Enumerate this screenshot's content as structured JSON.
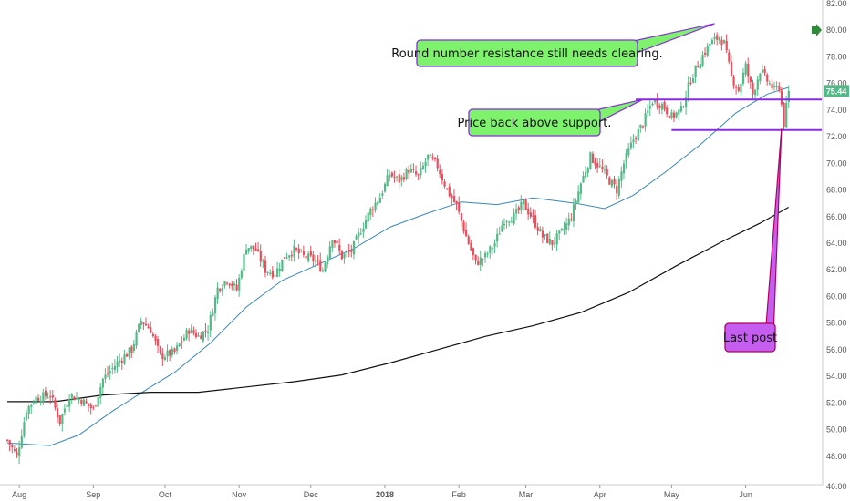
{
  "chart_data": {
    "type": "candlestick",
    "title": "",
    "xlabel": "",
    "ylabel": "",
    "ylim": [
      46,
      82
    ],
    "y_ticks": [
      "48.00",
      "50.00",
      "52.00",
      "54.00",
      "56.00",
      "58.00",
      "60.00",
      "62.00",
      "64.00",
      "66.00",
      "68.00",
      "70.00",
      "72.00",
      "74.00",
      "76.00",
      "78.00",
      "80.00",
      "82.00"
    ],
    "bottom_tick_partial": "46.00",
    "x_ticks": [
      {
        "label": "Aug",
        "day": 5
      },
      {
        "label": "Sep",
        "day": 36
      },
      {
        "label": "Oct",
        "day": 66
      },
      {
        "label": "Nov",
        "day": 97
      },
      {
        "label": "Dec",
        "day": 127
      },
      {
        "label": "2018",
        "day": 158
      },
      {
        "label": "Feb",
        "day": 189
      },
      {
        "label": "Mar",
        "day": 217
      },
      {
        "label": "Apr",
        "day": 248
      },
      {
        "label": "May",
        "day": 278
      },
      {
        "label": "Jun",
        "day": 309
      }
    ],
    "anchors": [
      {
        "day": 0,
        "price": 49.2
      },
      {
        "day": 4,
        "price": 48.0
      },
      {
        "day": 8,
        "price": 51.5
      },
      {
        "day": 12,
        "price": 52.4
      },
      {
        "day": 18,
        "price": 52.6
      },
      {
        "day": 22,
        "price": 50.6
      },
      {
        "day": 26,
        "price": 52.6
      },
      {
        "day": 31,
        "price": 52.2
      },
      {
        "day": 36,
        "price": 51.5
      },
      {
        "day": 40,
        "price": 53.8
      },
      {
        "day": 47,
        "price": 55.2
      },
      {
        "day": 52,
        "price": 56.0
      },
      {
        "day": 56,
        "price": 58.2
      },
      {
        "day": 60,
        "price": 57.5
      },
      {
        "day": 64,
        "price": 55.5
      },
      {
        "day": 70,
        "price": 55.8
      },
      {
        "day": 76,
        "price": 57.5
      },
      {
        "day": 80,
        "price": 57.0
      },
      {
        "day": 84,
        "price": 57.6
      },
      {
        "day": 88,
        "price": 60.6
      },
      {
        "day": 92,
        "price": 61.3
      },
      {
        "day": 96,
        "price": 60.5
      },
      {
        "day": 100,
        "price": 63.8
      },
      {
        "day": 104,
        "price": 63.5
      },
      {
        "day": 108,
        "price": 62.0
      },
      {
        "day": 112,
        "price": 61.7
      },
      {
        "day": 116,
        "price": 63.0
      },
      {
        "day": 120,
        "price": 63.5
      },
      {
        "day": 124,
        "price": 63.0
      },
      {
        "day": 128,
        "price": 62.8
      },
      {
        "day": 132,
        "price": 62.0
      },
      {
        "day": 136,
        "price": 64.5
      },
      {
        "day": 140,
        "price": 63.0
      },
      {
        "day": 144,
        "price": 63.4
      },
      {
        "day": 148,
        "price": 65.0
      },
      {
        "day": 152,
        "price": 66.5
      },
      {
        "day": 156,
        "price": 67.5
      },
      {
        "day": 160,
        "price": 69.2
      },
      {
        "day": 164,
        "price": 68.7
      },
      {
        "day": 168,
        "price": 69.5
      },
      {
        "day": 172,
        "price": 69.0
      },
      {
        "day": 176,
        "price": 70.5
      },
      {
        "day": 180,
        "price": 69.8
      },
      {
        "day": 184,
        "price": 68.0
      },
      {
        "day": 188,
        "price": 66.8
      },
      {
        "day": 192,
        "price": 64.5
      },
      {
        "day": 196,
        "price": 62.5
      },
      {
        "day": 200,
        "price": 63.0
      },
      {
        "day": 204,
        "price": 64.0
      },
      {
        "day": 208,
        "price": 65.8
      },
      {
        "day": 212,
        "price": 66.0
      },
      {
        "day": 216,
        "price": 67.0
      },
      {
        "day": 220,
        "price": 65.8
      },
      {
        "day": 224,
        "price": 64.5
      },
      {
        "day": 228,
        "price": 64.0
      },
      {
        "day": 232,
        "price": 64.8
      },
      {
        "day": 236,
        "price": 66.0
      },
      {
        "day": 240,
        "price": 68.5
      },
      {
        "day": 244,
        "price": 70.5
      },
      {
        "day": 248,
        "price": 69.7
      },
      {
        "day": 252,
        "price": 68.7
      },
      {
        "day": 255,
        "price": 68.0
      },
      {
        "day": 258,
        "price": 70.0
      },
      {
        "day": 262,
        "price": 71.8
      },
      {
        "day": 266,
        "price": 73.0
      },
      {
        "day": 270,
        "price": 74.7
      },
      {
        "day": 274,
        "price": 74.4
      },
      {
        "day": 278,
        "price": 73.5
      },
      {
        "day": 282,
        "price": 74.0
      },
      {
        "day": 286,
        "price": 76.3
      },
      {
        "day": 290,
        "price": 77.8
      },
      {
        "day": 294,
        "price": 79.0
      },
      {
        "day": 298,
        "price": 79.5
      },
      {
        "day": 300,
        "price": 79.0
      },
      {
        "day": 303,
        "price": 76.5
      },
      {
        "day": 306,
        "price": 75.5
      },
      {
        "day": 309,
        "price": 77.3
      },
      {
        "day": 312,
        "price": 75.2
      },
      {
        "day": 315,
        "price": 77.0
      },
      {
        "day": 318,
        "price": 76.2
      },
      {
        "day": 321,
        "price": 75.5
      },
      {
        "day": 323,
        "price": 75.8
      },
      {
        "day": 325,
        "price": 73.0
      },
      {
        "day": 327,
        "price": 75.44
      }
    ],
    "last_price": "75.44",
    "series": [
      {
        "role": "50-day moving average",
        "color": "#3a87b6",
        "points": [
          [
            0,
            49.0
          ],
          [
            8,
            48.9
          ],
          [
            18,
            48.8
          ],
          [
            30,
            49.6
          ],
          [
            45,
            51.5
          ],
          [
            60,
            53.2
          ],
          [
            70,
            54.3
          ],
          [
            85,
            56.5
          ],
          [
            100,
            59.2
          ],
          [
            115,
            61.2
          ],
          [
            130,
            62.4
          ],
          [
            145,
            63.6
          ],
          [
            160,
            65.2
          ],
          [
            175,
            66.2
          ],
          [
            190,
            67.1
          ],
          [
            205,
            66.9
          ],
          [
            220,
            67.4
          ],
          [
            238,
            67.0
          ],
          [
            250,
            66.6
          ],
          [
            262,
            67.6
          ],
          [
            275,
            69.3
          ],
          [
            290,
            71.4
          ],
          [
            305,
            73.8
          ],
          [
            318,
            75.2
          ],
          [
            327,
            75.7
          ]
        ]
      },
      {
        "role": "200-day moving average",
        "color": "#111111",
        "points": [
          [
            0,
            52.1
          ],
          [
            20,
            52.1
          ],
          [
            40,
            52.6
          ],
          [
            60,
            52.8
          ],
          [
            80,
            52.8
          ],
          [
            100,
            53.2
          ],
          [
            120,
            53.6
          ],
          [
            140,
            54.1
          ],
          [
            160,
            55.0
          ],
          [
            180,
            56.0
          ],
          [
            200,
            57.0
          ],
          [
            220,
            57.8
          ],
          [
            240,
            58.8
          ],
          [
            260,
            60.3
          ],
          [
            280,
            62.3
          ],
          [
            300,
            64.2
          ],
          [
            315,
            65.5
          ],
          [
            327,
            66.7
          ]
        ]
      }
    ],
    "levels": [
      {
        "price": 74.8,
        "from_day": 263,
        "color": "#8a2be2"
      },
      {
        "price": 72.5,
        "from_day": 278,
        "color": "#8a2be2"
      }
    ],
    "annotations": [
      {
        "text": "Round number resistance still needs clearing.",
        "bg": "#7ef26d",
        "border": "#8a2be2",
        "target_day": 296,
        "target_price": 80.5
      },
      {
        "text": "Price back above support.",
        "bg": "#7ef26d",
        "border": "#8a2be2",
        "target_day": 266,
        "target_price": 74.8
      },
      {
        "text": "Last post",
        "bg": "#c55ef0",
        "border": "#b00060",
        "target_day": 324,
        "target_price": 72.6
      }
    ],
    "colors": {
      "up": "#53b987",
      "down": "#eb4d5c",
      "axis_text": "#555555",
      "price_tag": "#53b987",
      "arrow": "#2e8b3a"
    }
  }
}
